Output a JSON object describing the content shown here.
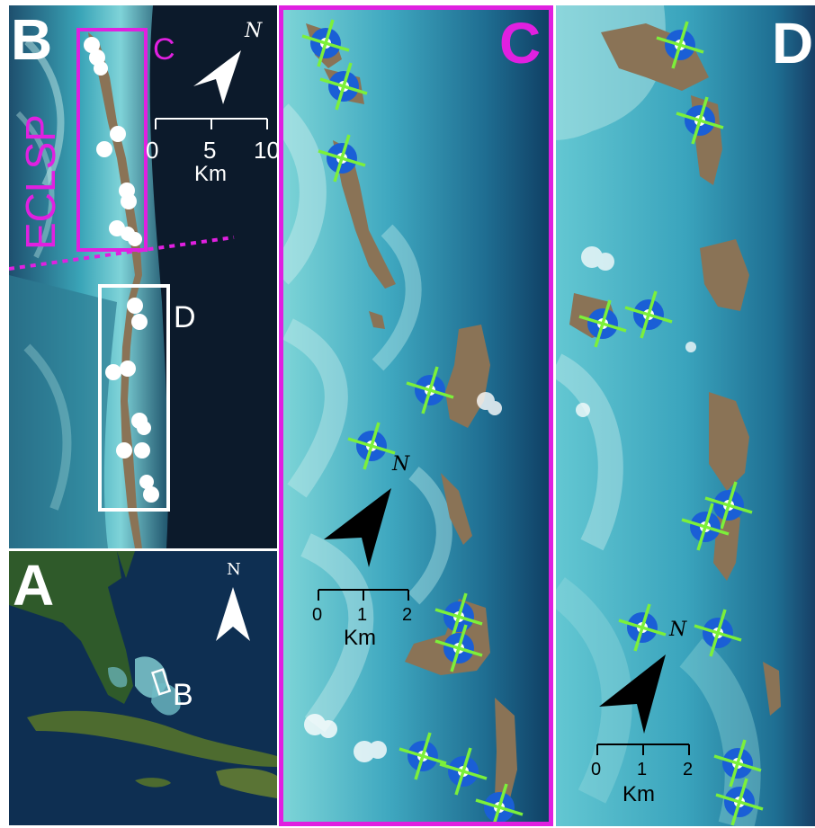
{
  "panel_b": {
    "letter": "B",
    "label_c": "C",
    "label_d": "D",
    "region_label": "ECLSP",
    "north": "N",
    "scale_ticks": [
      "0",
      "5",
      "10"
    ],
    "scale_unit": "Km"
  },
  "panel_a": {
    "letter": "A",
    "north": "N",
    "label_b": "B"
  },
  "panel_c": {
    "letter": "C",
    "north": "N",
    "scale_ticks": [
      "0",
      "1",
      "2"
    ],
    "scale_unit": "Km"
  },
  "panel_d": {
    "letter": "D",
    "north": "N",
    "scale_ticks": [
      "0",
      "1",
      "2"
    ],
    "scale_unit": "Km"
  },
  "colors": {
    "magenta": "#e020e0",
    "white": "#ffffff",
    "marker_blue": "#1a5fd6",
    "marker_green": "#7cf03a",
    "deep_water": "#0c1a2b",
    "shallow_water": "#5fc3cf",
    "land": "#8a7356"
  },
  "icons": {
    "north_arrow": "north-arrow-icon",
    "site_marker": "site-marker-icon",
    "white_dot": "site-dot-icon"
  }
}
